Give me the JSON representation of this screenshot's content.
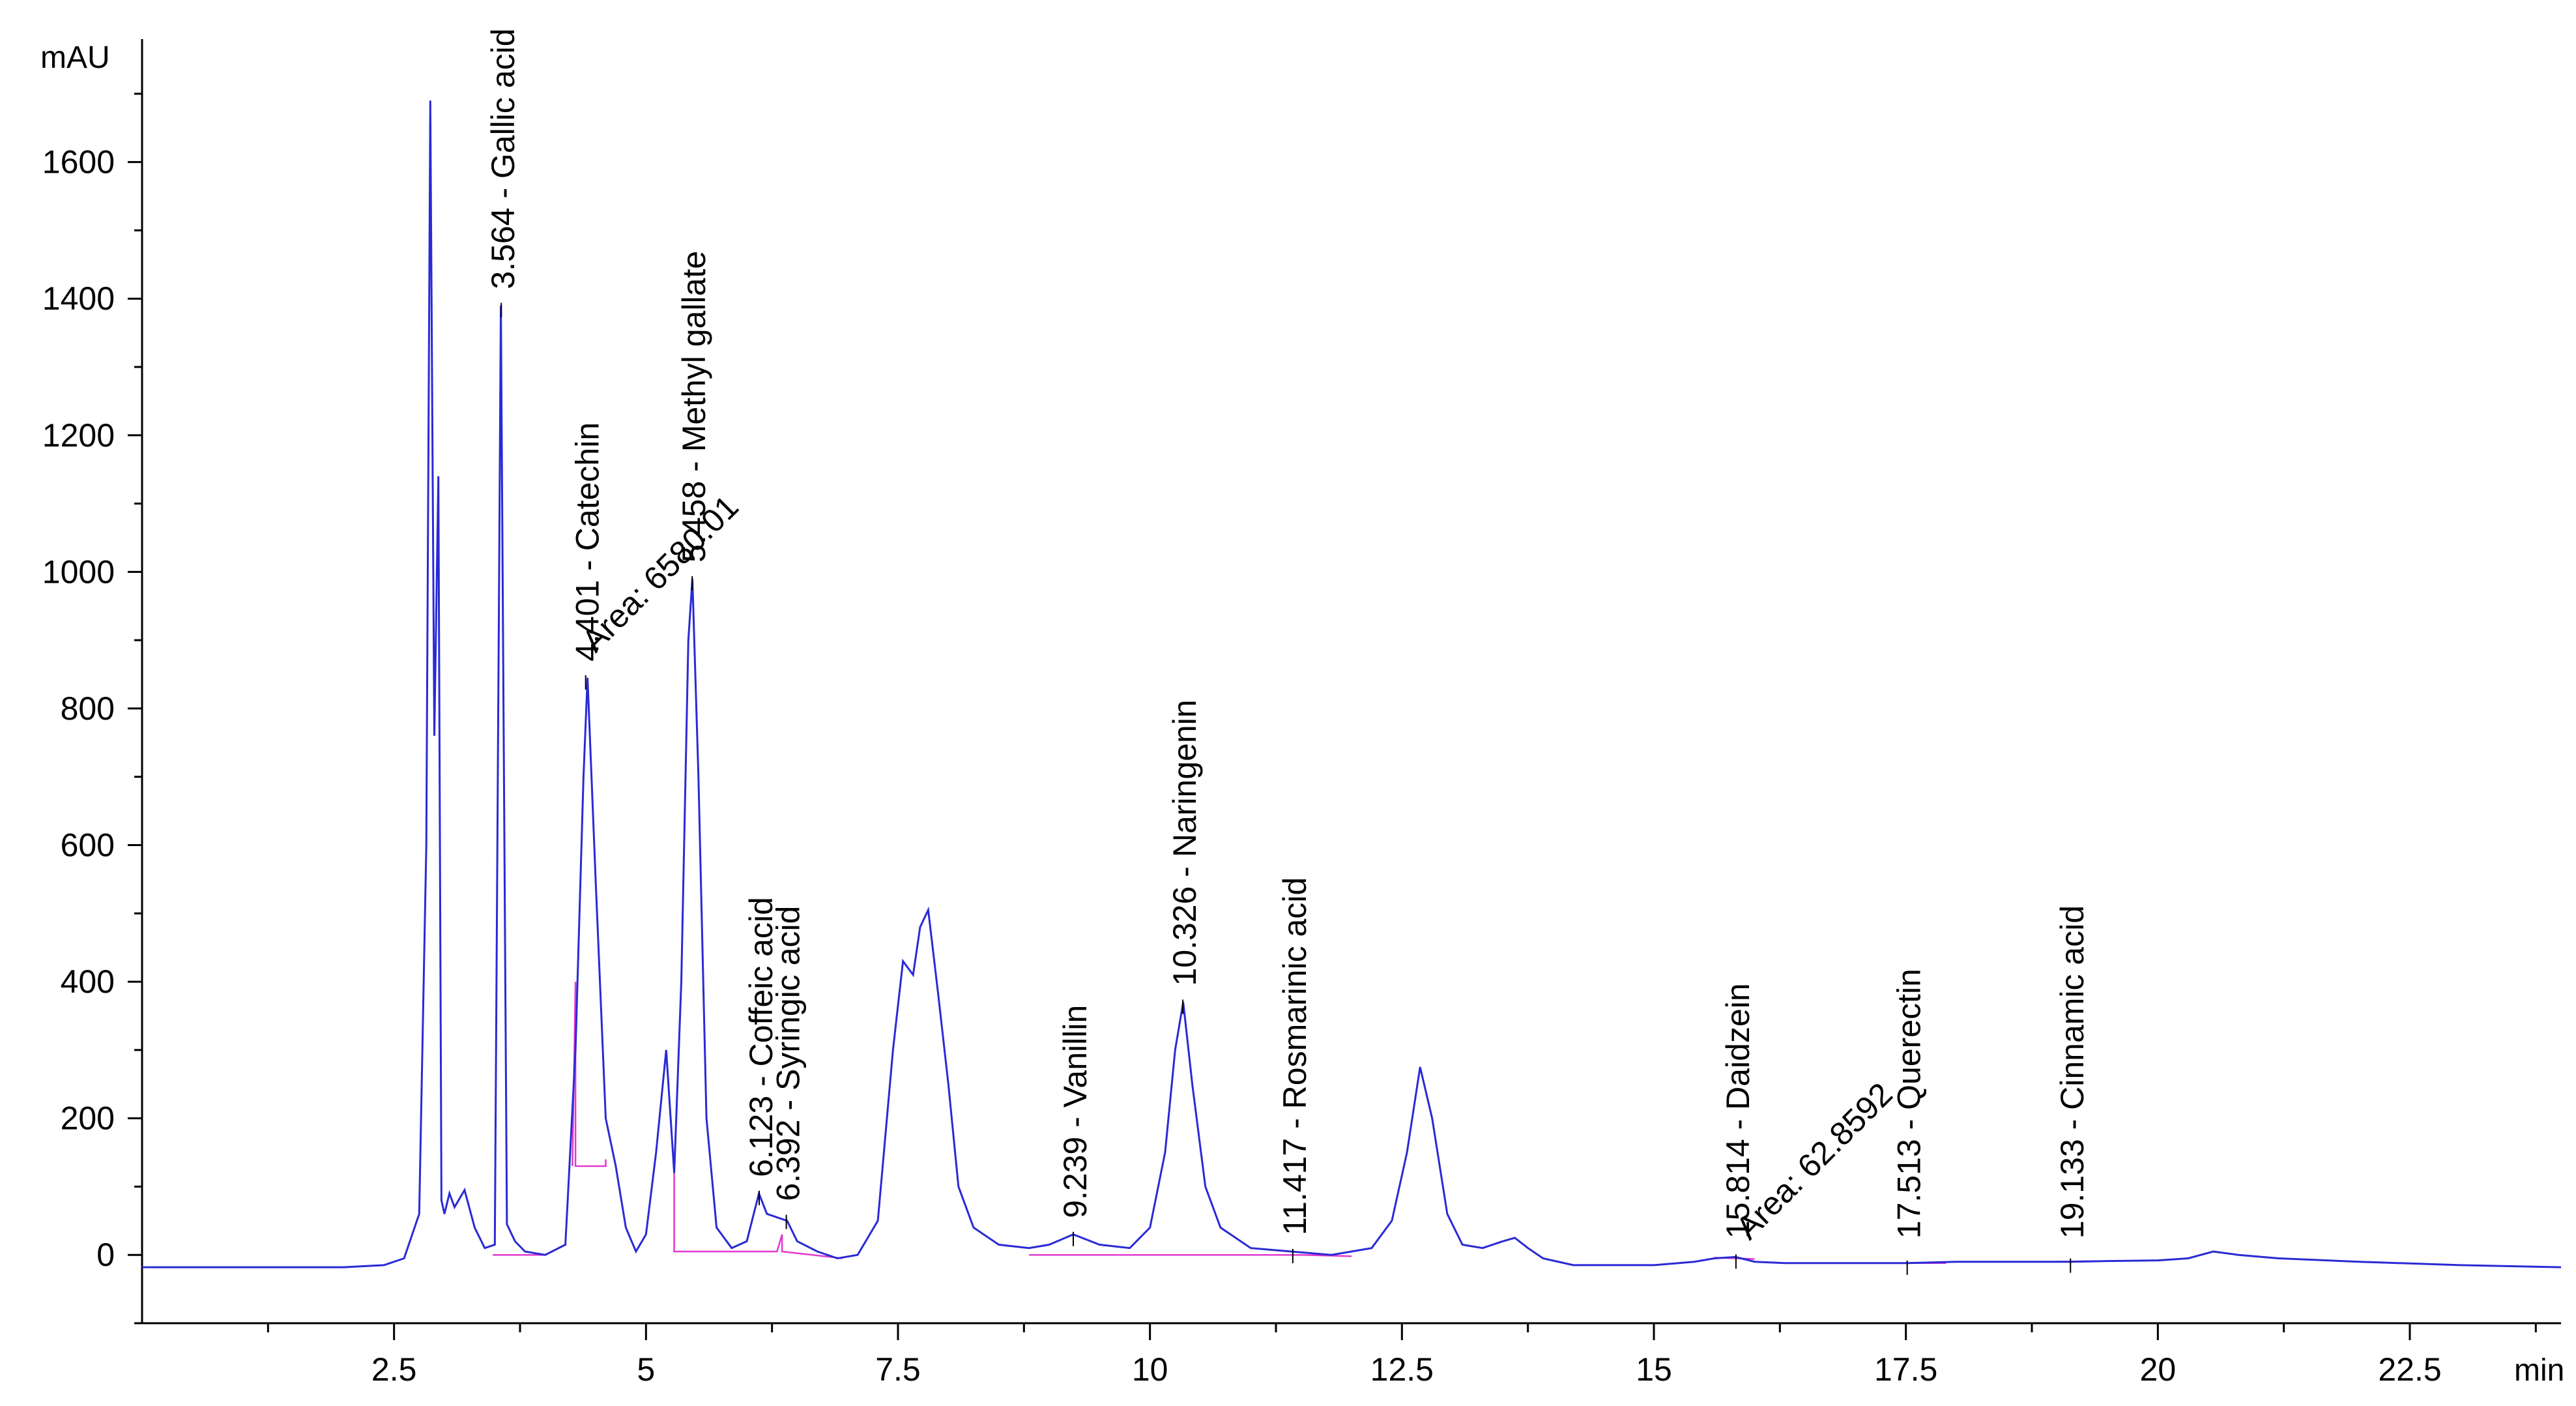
{
  "chart_data": {
    "type": "line",
    "xlabel": "min",
    "ylabel": "mAU",
    "xlim": [
      0,
      24
    ],
    "ylim": [
      -100,
      1780
    ],
    "x_ticks": [
      2.5,
      5,
      7.5,
      10,
      12.5,
      15,
      17.5,
      20,
      22.5
    ],
    "y_ticks": [
      0,
      200,
      400,
      600,
      800,
      1000,
      1200,
      1400,
      1600
    ],
    "grid": false,
    "legend": "none",
    "colors": {
      "trace": "#2a2ad6",
      "baseline": "#e23ad0",
      "axis": "#000000"
    },
    "series": [
      {
        "x": [
          0,
          1,
          2,
          2.4,
          2.6,
          2.75,
          2.82,
          2.86,
          2.9,
          2.94,
          2.97,
          3.0,
          3.05,
          3.1,
          3.2,
          3.3,
          3.4,
          3.5,
          3.56,
          3.62,
          3.7,
          3.8,
          4.0,
          4.2,
          4.3,
          4.38,
          4.42,
          4.5,
          4.6,
          4.7,
          4.8,
          4.9,
          5.0,
          5.1,
          5.2,
          5.28,
          5.35,
          5.42,
          5.46,
          5.52,
          5.6,
          5.7,
          5.85,
          6.0,
          6.12,
          6.2,
          6.3,
          6.4,
          6.5,
          6.7,
          6.9,
          7.1,
          7.3,
          7.45,
          7.55,
          7.65,
          7.72,
          7.8,
          7.9,
          8.0,
          8.1,
          8.25,
          8.5,
          8.8,
          9.0,
          9.24,
          9.5,
          9.8,
          10.0,
          10.15,
          10.25,
          10.33,
          10.42,
          10.55,
          10.7,
          11.0,
          11.4,
          11.8,
          12.2,
          12.4,
          12.55,
          12.68,
          12.8,
          12.95,
          13.1,
          13.3,
          13.5,
          13.62,
          13.75,
          13.9,
          14.2,
          14.6,
          15.0,
          15.4,
          15.6,
          15.81,
          16.0,
          16.3,
          17.0,
          17.51,
          18.0,
          18.5,
          19.13,
          19.5,
          20.0,
          20.3,
          20.55,
          20.8,
          21.2,
          22.0,
          23.0,
          24.0
        ],
        "y": [
          -18,
          -18,
          -18,
          -15,
          -5,
          60,
          600,
          1690,
          760,
          1140,
          80,
          60,
          90,
          70,
          95,
          40,
          10,
          15,
          1390,
          45,
          20,
          5,
          0,
          15,
          300,
          700,
          845,
          550,
          200,
          130,
          40,
          5,
          30,
          150,
          300,
          120,
          400,
          900,
          990,
          700,
          200,
          40,
          10,
          20,
          90,
          60,
          55,
          50,
          20,
          5,
          -5,
          0,
          50,
          300,
          430,
          410,
          480,
          505,
          380,
          250,
          100,
          40,
          15,
          10,
          15,
          30,
          15,
          10,
          40,
          150,
          300,
          370,
          250,
          100,
          40,
          10,
          5,
          0,
          10,
          50,
          150,
          275,
          200,
          60,
          15,
          10,
          20,
          25,
          10,
          -5,
          -15,
          -15,
          -15,
          -10,
          -5,
          -3,
          -10,
          -12,
          -12,
          -12,
          -10,
          -10,
          -10,
          -9,
          -8,
          -5,
          5,
          0,
          -5,
          -10,
          -15,
          -18
        ]
      }
    ],
    "annotations": [
      {
        "rt": "3.564",
        "name": "Gallic acid",
        "text": "3.564 -  Gallic acid",
        "x": 3.564,
        "y": 1390
      },
      {
        "rt": "4.401",
        "name": "Catechin",
        "text": "4.401 -  Catechin",
        "x": 4.401,
        "y": 845
      },
      {
        "rt": "5.458",
        "name": "Methyl gallate",
        "text": "5.458 -  Methyl gallate",
        "x": 5.458,
        "y": 990
      },
      {
        "rt": "6.123",
        "name": "Coffeic acid",
        "text": "6.123 -  Coffeic acid",
        "x": 6.123,
        "y": 90
      },
      {
        "rt": "6.392",
        "name": "Syringic acid",
        "text": "6.392 -  Syringic acid",
        "x": 6.392,
        "y": 55
      },
      {
        "rt": "9.239",
        "name": "Vanillin",
        "text": "9.239 -  Vanillin",
        "x": 9.239,
        "y": 30
      },
      {
        "rt": "10.326",
        "name": "Naringenin",
        "text": "10.326 -  Naringenin",
        "x": 10.326,
        "y": 370
      },
      {
        "rt": "11.417",
        "name": "Rosmarinic acid",
        "text": "11.417 -  Rosmarinic acid",
        "x": 11.417,
        "y": 5
      },
      {
        "rt": "15.814",
        "name": "Daidzein",
        "text": "15.814 -  Daidzein",
        "x": 15.814,
        "y": -3
      },
      {
        "rt": "17.513",
        "name": "Querectin",
        "text": "17.513 -  Querectin",
        "x": 17.513,
        "y": -12
      },
      {
        "rt": "19.133",
        "name": "Cinnamic acid",
        "text": "19.133 -  Cinnamic acid",
        "x": 19.133,
        "y": -9
      }
    ],
    "area_labels": [
      {
        "text": "Area: 6580.01",
        "x": 4.5,
        "y": 880
      },
      {
        "text": "Area: 62.8592",
        "x": 15.95,
        "y": 20
      }
    ],
    "baselines": [
      {
        "points": [
          [
            3.48,
            0
          ],
          [
            3.5,
            0
          ],
          [
            4.0,
            0
          ]
        ]
      },
      {
        "points": [
          [
            4.27,
            130
          ],
          [
            4.3,
            400
          ],
          [
            4.3,
            130
          ],
          [
            4.6,
            130
          ],
          [
            4.6,
            140
          ]
        ]
      },
      {
        "points": [
          [
            5.28,
            120
          ],
          [
            5.28,
            5
          ],
          [
            6.3,
            5
          ],
          [
            6.35,
            30
          ],
          [
            6.35,
            5
          ],
          [
            6.95,
            -5
          ]
        ]
      },
      {
        "points": [
          [
            8.8,
            0
          ],
          [
            11.5,
            0
          ],
          [
            12.0,
            -2
          ]
        ]
      },
      {
        "points": [
          [
            15.6,
            -4
          ],
          [
            16.0,
            -6
          ]
        ]
      },
      {
        "points": [
          [
            17.3,
            -12
          ],
          [
            17.9,
            -12
          ]
        ]
      },
      {
        "points": [
          [
            18.9,
            -10
          ],
          [
            19.4,
            -9
          ]
        ]
      }
    ]
  }
}
